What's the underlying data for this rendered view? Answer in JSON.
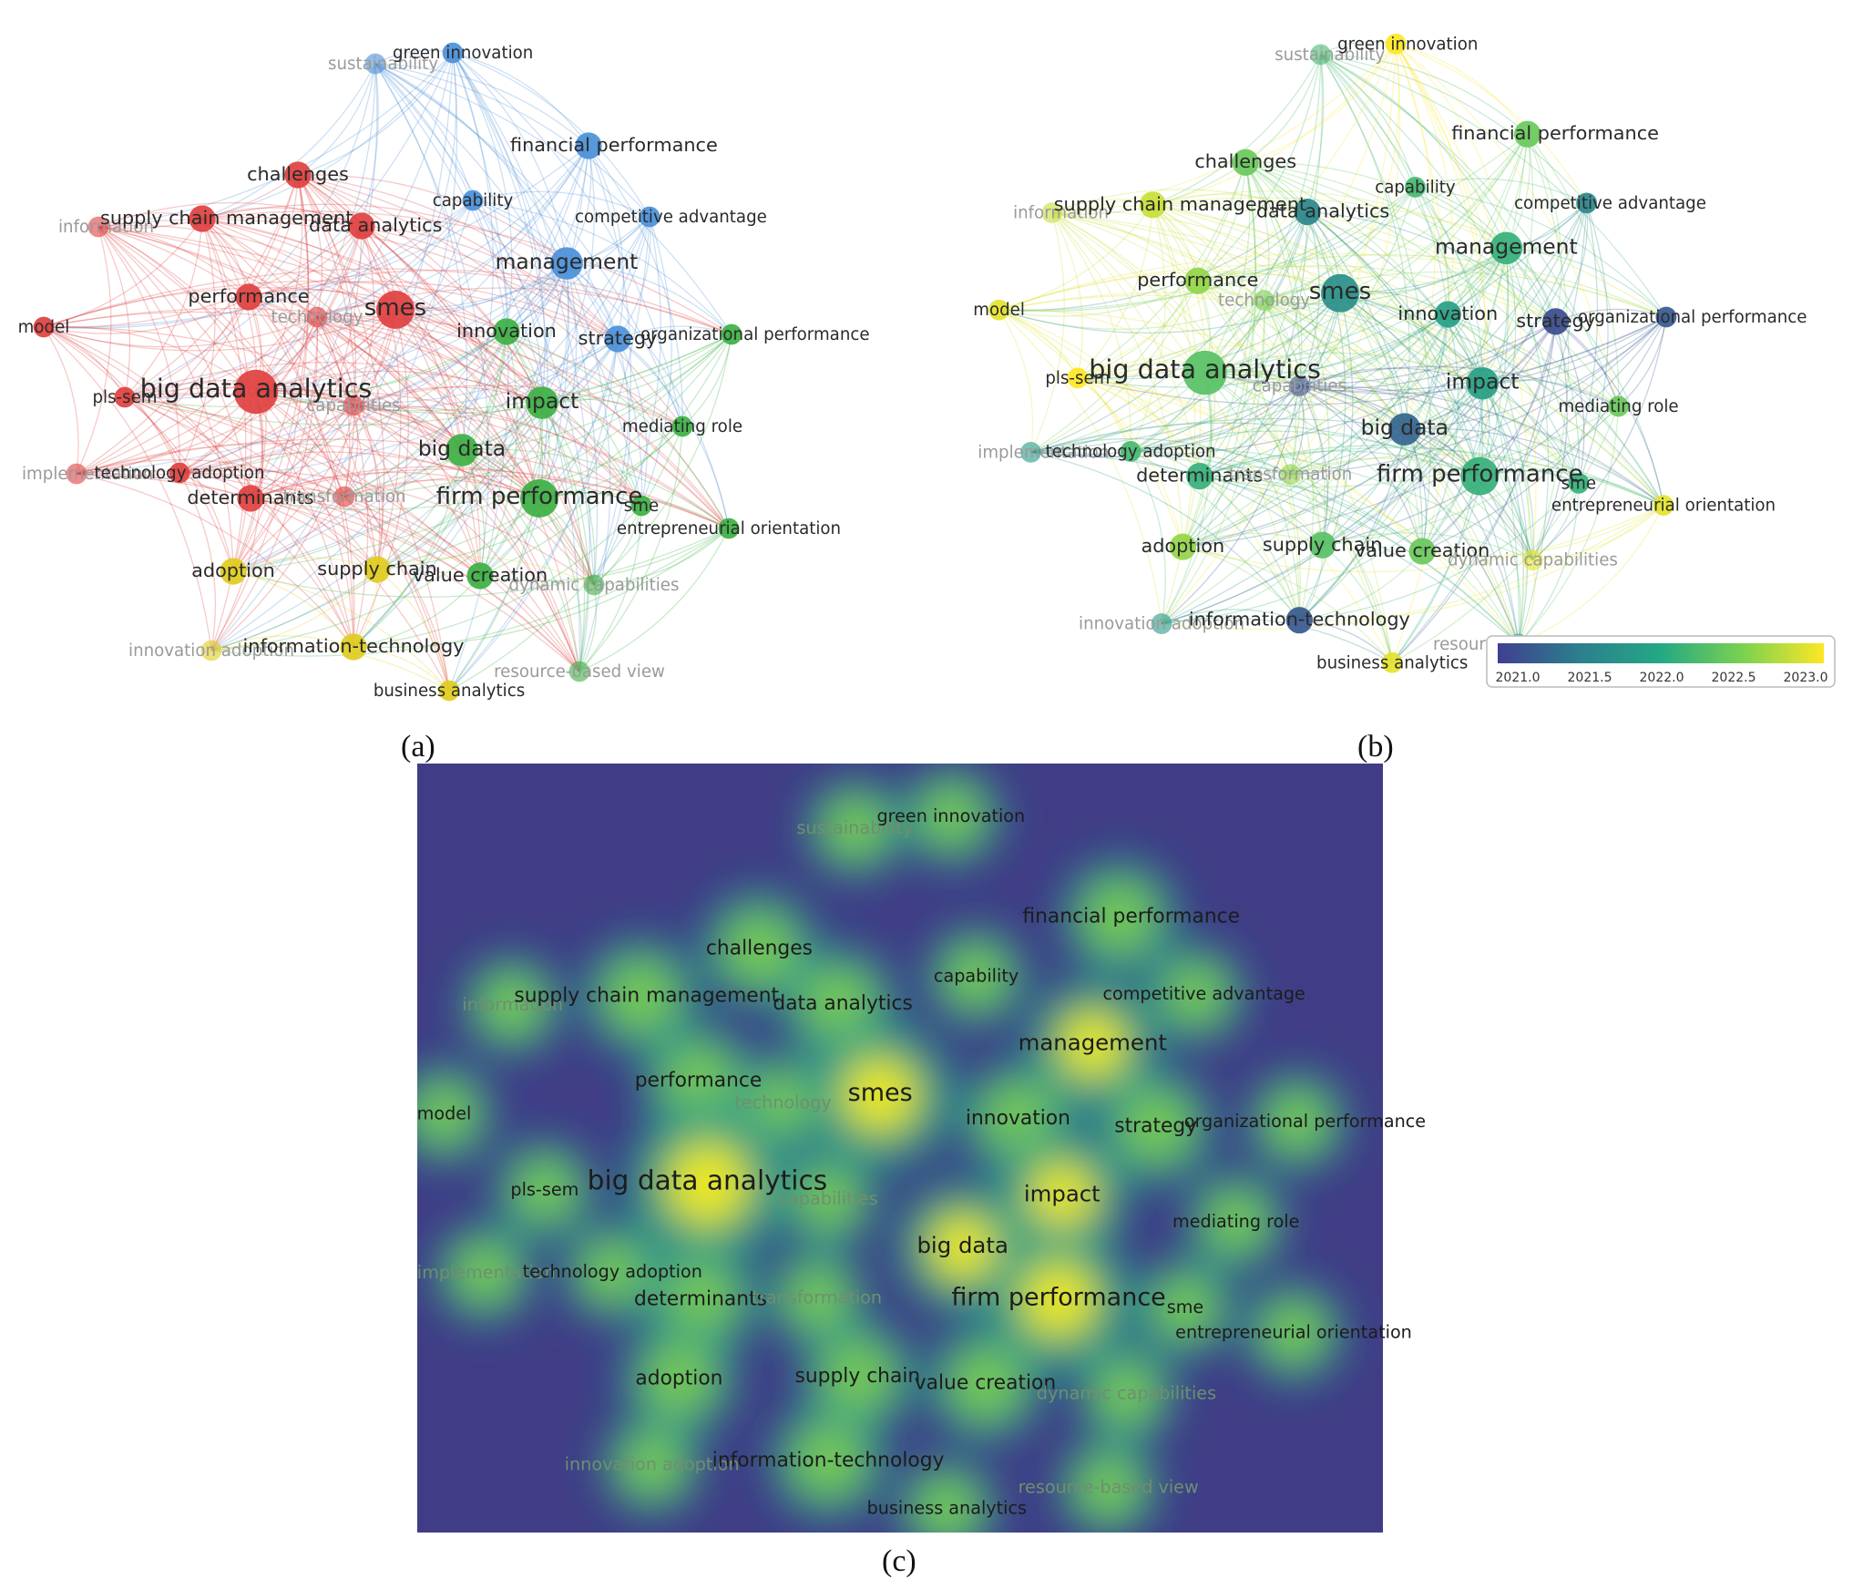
{
  "panel_labels": {
    "a": "(a)",
    "b": "(b)",
    "c": "(c)"
  },
  "colorbar": {
    "ticks": [
      "2021.0",
      "2021.5",
      "2022.0",
      "2022.5",
      "2023.0"
    ],
    "min": 2021.0,
    "max": 2023.0,
    "colors": [
      "#3f3f8f",
      "#2c7f8e",
      "#24a884",
      "#7ad151",
      "#fde725"
    ]
  },
  "clusters": {
    "red": "#e0403f",
    "green": "#3cb043",
    "blue": "#4a90d9",
    "yellow": "#e0cc1e"
  },
  "density_colors": {
    "background": "#403d86",
    "mid": "#229a8a",
    "high": "#7fd04e",
    "peak": "#f1e91c"
  },
  "nodes": [
    {
      "id": "sustainability",
      "label": "sustainability",
      "cluster": "blue",
      "weight": 2,
      "year": 2022.2,
      "faded": true
    },
    {
      "id": "green-innovation",
      "label": "green innovation",
      "cluster": "blue",
      "weight": 2,
      "year": 2023.0
    },
    {
      "id": "financial-performance",
      "label": "financial performance",
      "cluster": "blue",
      "weight": 3,
      "year": 2022.4
    },
    {
      "id": "challenges",
      "label": "challenges",
      "cluster": "red",
      "weight": 3,
      "year": 2022.4
    },
    {
      "id": "capability",
      "label": "capability",
      "cluster": "blue",
      "weight": 2,
      "year": 2022.2
    },
    {
      "id": "competitive-advantage",
      "label": "competitive advantage",
      "cluster": "blue",
      "weight": 2,
      "year": 2021.6
    },
    {
      "id": "information",
      "label": "information",
      "cluster": "red",
      "weight": 2,
      "year": 2022.8,
      "faded": true
    },
    {
      "id": "supply-chain-management",
      "label": "supply chain management",
      "cluster": "red",
      "weight": 3,
      "year": 2022.8
    },
    {
      "id": "data-analytics",
      "label": "data analytics",
      "cluster": "red",
      "weight": 3,
      "year": 2021.6
    },
    {
      "id": "management",
      "label": "management",
      "cluster": "blue",
      "weight": 4,
      "year": 2022.1
    },
    {
      "id": "performance",
      "label": "performance",
      "cluster": "red",
      "weight": 3,
      "year": 2022.6
    },
    {
      "id": "technology",
      "label": "technology",
      "cluster": "red",
      "weight": 2,
      "year": 2022.5,
      "faded": true
    },
    {
      "id": "smes",
      "label": "smes",
      "cluster": "red",
      "weight": 5,
      "year": 2021.7
    },
    {
      "id": "model",
      "label": "model",
      "cluster": "red",
      "weight": 2,
      "year": 2022.9
    },
    {
      "id": "innovation",
      "label": "innovation",
      "cluster": "green",
      "weight": 3,
      "year": 2021.9
    },
    {
      "id": "strategy",
      "label": "strategy",
      "cluster": "blue",
      "weight": 3,
      "year": 2021.1
    },
    {
      "id": "organizational-performance",
      "label": "organizational performance",
      "cluster": "green",
      "weight": 2,
      "year": 2021.2
    },
    {
      "id": "pls-sem",
      "label": "pls-sem",
      "cluster": "red",
      "weight": 2,
      "year": 2023.0
    },
    {
      "id": "big-data-analytics",
      "label": "big data analytics",
      "cluster": "red",
      "weight": 6,
      "year": 2022.3
    },
    {
      "id": "capabilities",
      "label": "capabilities",
      "cluster": "red",
      "weight": 2,
      "year": 2021.1,
      "faded": true
    },
    {
      "id": "impact",
      "label": "impact",
      "cluster": "green",
      "weight": 4,
      "year": 2021.9
    },
    {
      "id": "mediating-role",
      "label": "mediating role",
      "cluster": "green",
      "weight": 2,
      "year": 2022.4
    },
    {
      "id": "big-data",
      "label": "big data",
      "cluster": "green",
      "weight": 4,
      "year": 2021.3
    },
    {
      "id": "implementation",
      "label": "implementation",
      "cluster": "red",
      "weight": 2,
      "year": 2021.8,
      "faded": true
    },
    {
      "id": "technology-adoption",
      "label": "technology adoption",
      "cluster": "red",
      "weight": 2,
      "year": 2022.2
    },
    {
      "id": "determinants",
      "label": "determinants",
      "cluster": "red",
      "weight": 3,
      "year": 2022.1
    },
    {
      "id": "transformation",
      "label": "transformation",
      "cluster": "red",
      "weight": 2,
      "year": 2022.6,
      "faded": true
    },
    {
      "id": "firm-performance",
      "label": "firm performance",
      "cluster": "green",
      "weight": 5,
      "year": 2022.1
    },
    {
      "id": "sme",
      "label": "sme",
      "cluster": "green",
      "weight": 2,
      "year": 2022.1
    },
    {
      "id": "entrepreneurial-orientation",
      "label": "entrepreneurial orientation",
      "cluster": "green",
      "weight": 2,
      "year": 2022.9
    },
    {
      "id": "adoption",
      "label": "adoption",
      "cluster": "yellow",
      "weight": 3,
      "year": 2022.6
    },
    {
      "id": "supply-chain",
      "label": "supply chain",
      "cluster": "yellow",
      "weight": 3,
      "year": 2022.3
    },
    {
      "id": "value-creation",
      "label": "value creation",
      "cluster": "green",
      "weight": 3,
      "year": 2022.4
    },
    {
      "id": "dynamic-capabilities",
      "label": "dynamic capabilities",
      "cluster": "green",
      "weight": 2,
      "year": 2022.9,
      "faded": true
    },
    {
      "id": "innovation-adoption",
      "label": "innovation adoption",
      "cluster": "yellow",
      "weight": 2,
      "year": 2021.8,
      "faded": true
    },
    {
      "id": "information-technology",
      "label": "information-technology",
      "cluster": "yellow",
      "weight": 3,
      "year": 2021.2
    },
    {
      "id": "resource-based-view",
      "label": "resource-based view",
      "cluster": "green",
      "weight": 2,
      "year": 2021.8,
      "faded": true
    },
    {
      "id": "business-analytics",
      "label": "business analytics",
      "cluster": "yellow",
      "weight": 2,
      "year": 2022.9
    }
  ]
}
